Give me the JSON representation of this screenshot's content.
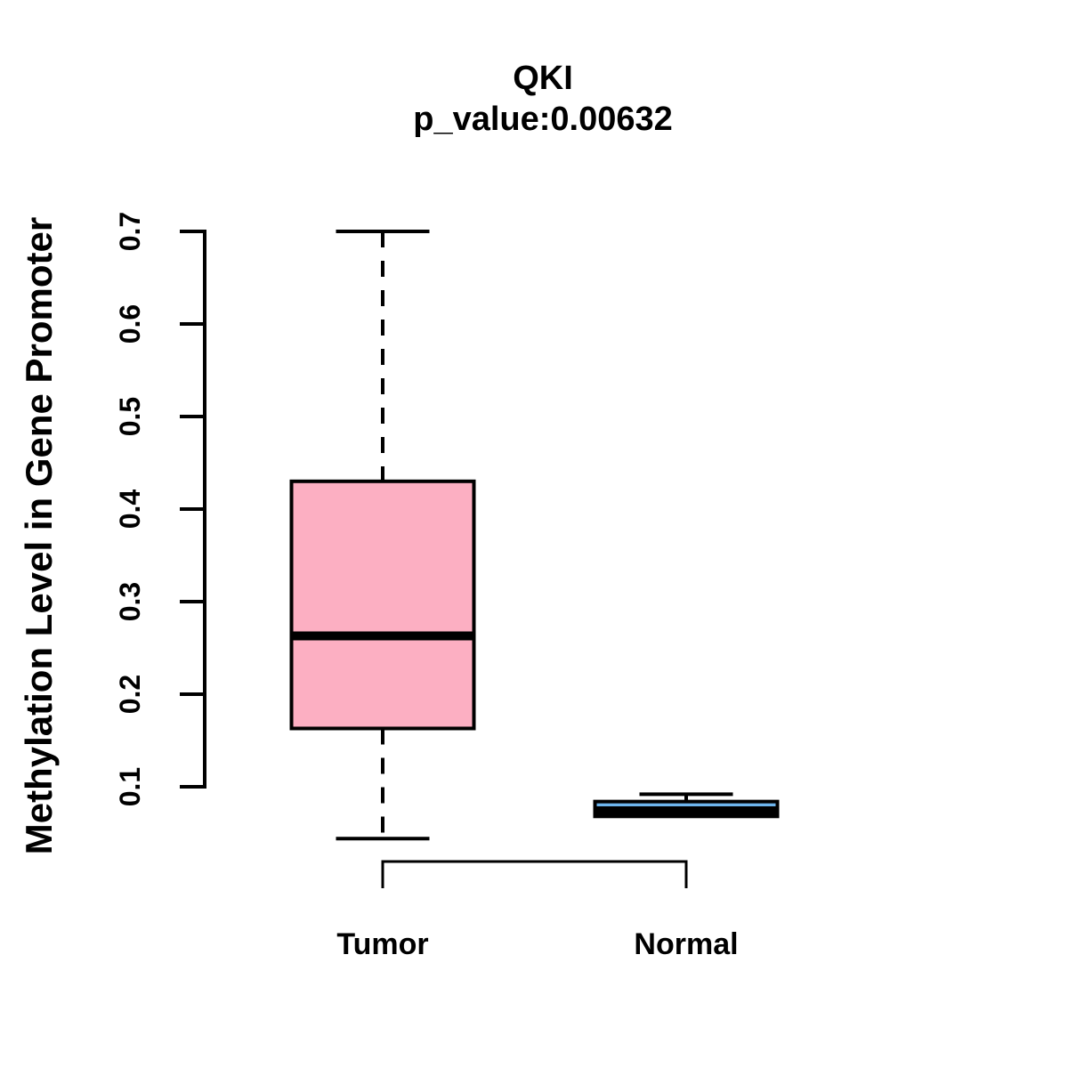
{
  "title": "QKI",
  "subtitle": "p_value:0.00632",
  "y_axis_label": "Methylation Level in Gene Promoter",
  "chart_data": {
    "type": "boxplot",
    "title": "QKI",
    "subtitle": "p_value:0.00632",
    "xlabel": "",
    "ylabel": "Methylation Level in Gene Promoter",
    "categories": [
      "Tumor",
      "Normal"
    ],
    "y_ticks": [
      0.1,
      0.2,
      0.3,
      0.4,
      0.5,
      0.6,
      0.7
    ],
    "y_axis_range": [
      0.1,
      0.7
    ],
    "grid": false,
    "legend": "none",
    "series": [
      {
        "name": "Tumor",
        "whisker_low": 0.044,
        "q1": 0.163,
        "median": 0.263,
        "q3": 0.43,
        "whisker_high": 0.7,
        "fill_color": "#FCAFC2"
      },
      {
        "name": "Normal",
        "whisker_low": 0.068,
        "q1": 0.068,
        "median": 0.074,
        "q3": 0.084,
        "whisker_high": 0.092,
        "fill_color": "#6EB5ED"
      }
    ],
    "style": {
      "box_border_color": "#000000",
      "median_color": "#000000",
      "whisker_style": "dashed",
      "axis_color": "#000000",
      "background": "#FFFFFF"
    }
  }
}
